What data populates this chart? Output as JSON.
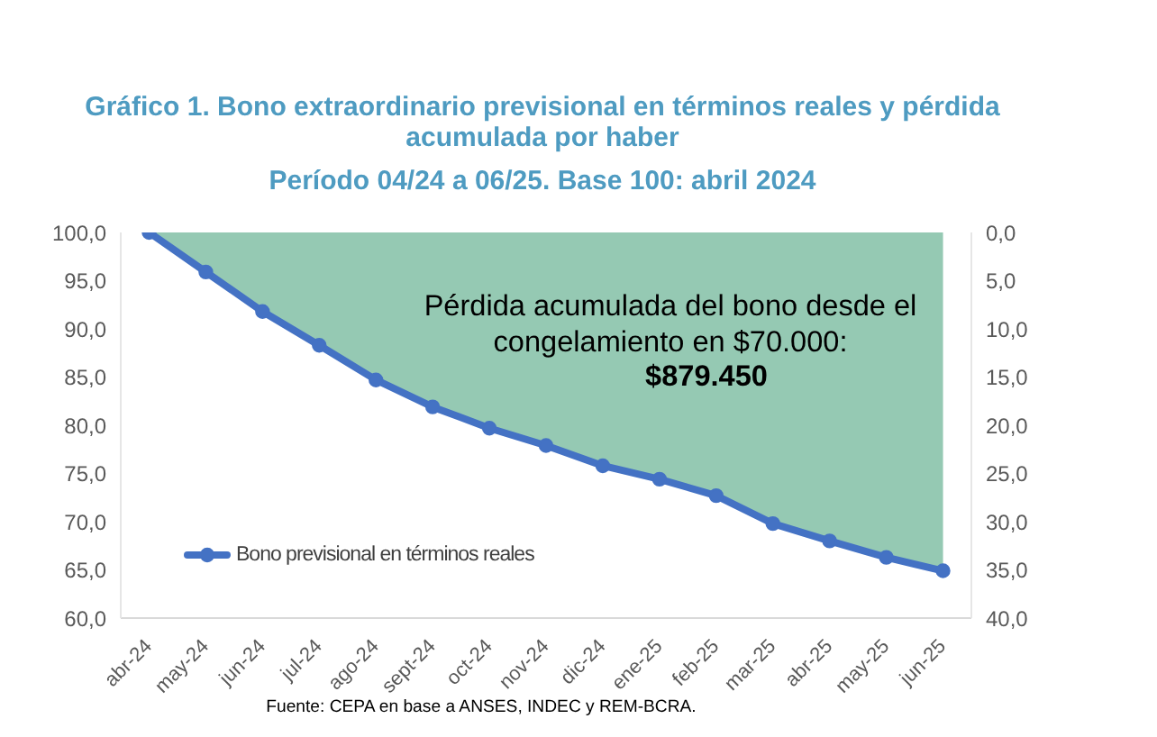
{
  "chart_data": {
    "type": "line",
    "title": "Gráfico 1. Bono extraordinario previsional en términos reales y pérdida acumulada por haber",
    "subtitle": "Período 04/24 a 06/25. Base 100: abril 2024",
    "categories": [
      "abr-24",
      "may-24",
      "jun-24",
      "jul-24",
      "ago-24",
      "sept-24",
      "oct-24",
      "nov-24",
      "dic-24",
      "ene-25",
      "feb-25",
      "mar-25",
      "abr-25",
      "may-25",
      "jun-25"
    ],
    "series": [
      {
        "name": "Bono previsional en términos reales",
        "color": "#4472c4",
        "values": [
          100.0,
          95.9,
          91.8,
          88.3,
          84.7,
          81.9,
          79.7,
          77.9,
          75.8,
          74.4,
          72.7,
          69.8,
          68.0,
          66.3,
          64.9
        ],
        "lower": [
          100.0,
          95.9,
          91.8,
          88.3,
          84.7,
          81.9,
          79.7,
          77.9,
          75.8,
          74.4,
          72.7,
          69.8,
          68.0,
          66.3,
          64.9
        ],
        "upper": [
          100,
          100,
          100,
          100,
          100,
          100,
          100,
          100,
          100,
          100,
          100,
          100,
          100,
          100,
          100
        ]
      }
    ],
    "ylim": [
      60,
      100
    ],
    "yticks": [
      {
        "value": 60,
        "label": "60,0"
      },
      {
        "value": 65,
        "label": "65,0"
      },
      {
        "value": 70,
        "label": "70,0"
      },
      {
        "value": 75,
        "label": "75,0"
      },
      {
        "value": 80,
        "label": "80,0"
      },
      {
        "value": 85,
        "label": "85,0"
      },
      {
        "value": 90,
        "label": "90,0"
      },
      {
        "value": 95,
        "label": "95,0"
      },
      {
        "value": 100,
        "label": "100,0"
      }
    ],
    "y2lim": [
      40,
      0
    ],
    "y2ticks": [
      {
        "value": 0,
        "label": "0,0"
      },
      {
        "value": 5,
        "label": "5,0"
      },
      {
        "value": 10,
        "label": "10,0"
      },
      {
        "value": 15,
        "label": "15,0"
      },
      {
        "value": 20,
        "label": "20,0"
      },
      {
        "value": 25,
        "label": "25,0"
      },
      {
        "value": 30,
        "label": "30,0"
      },
      {
        "value": 35,
        "label": "35,0"
      },
      {
        "value": 40,
        "label": "40,0"
      }
    ],
    "legend": "bottom left",
    "marker": "circle",
    "line_style": "solid",
    "annotations": [
      "Pérdida acumulada del bono desde el congelamiento en $70.000:",
      "$879.450",
      "Fuente: CEPA en base a ANSES, INDEC y REM-BCRA."
    ]
  }
}
